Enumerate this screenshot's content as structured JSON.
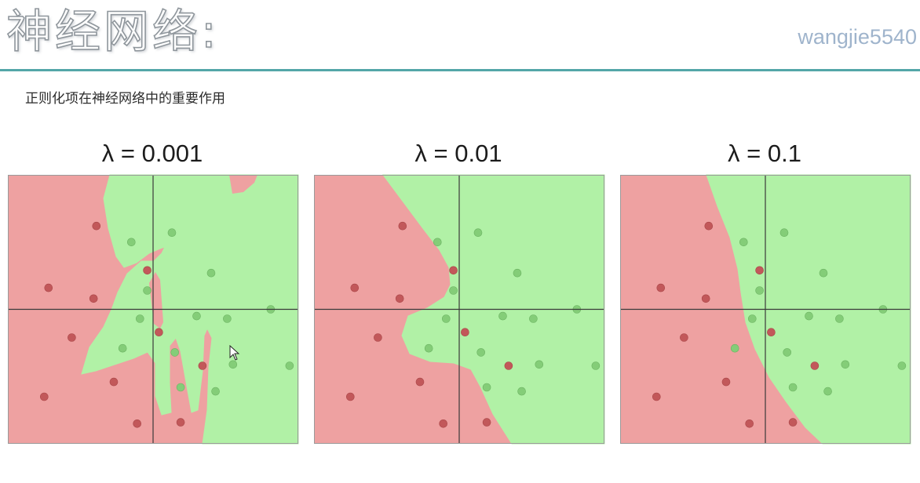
{
  "header": {
    "title": "神经网络:",
    "watermark": "wangjie5540",
    "subtitle": "正则化项在神经网络中的重要作用"
  },
  "colors": {
    "red_region": "#eea1a1",
    "green_region": "#b1f1a6",
    "red_point": "#c2585a",
    "green_point": "#84cd78",
    "axis": "#3a3a3a",
    "rule": "#53a6a8"
  },
  "chart_data": [
    {
      "type": "scatter",
      "title": "λ = 0.001",
      "xlim": [
        -1,
        1
      ],
      "ylim": [
        -1,
        1
      ],
      "grid": false,
      "points": [
        {
          "x": -0.39,
          "y": 0.62,
          "class": "red"
        },
        {
          "x": -0.04,
          "y": 0.29,
          "class": "red"
        },
        {
          "x": -0.72,
          "y": 0.16,
          "class": "red"
        },
        {
          "x": -0.41,
          "y": 0.08,
          "class": "red"
        },
        {
          "x": -0.56,
          "y": -0.21,
          "class": "red"
        },
        {
          "x": 0.04,
          "y": -0.17,
          "class": "red"
        },
        {
          "x": -0.27,
          "y": -0.54,
          "class": "red"
        },
        {
          "x": 0.34,
          "y": -0.42,
          "class": "red"
        },
        {
          "x": -0.75,
          "y": -0.65,
          "class": "red"
        },
        {
          "x": -0.11,
          "y": -0.85,
          "class": "red"
        },
        {
          "x": 0.19,
          "y": -0.84,
          "class": "red"
        },
        {
          "x": -0.15,
          "y": 0.5,
          "class": "green"
        },
        {
          "x": 0.13,
          "y": 0.57,
          "class": "green"
        },
        {
          "x": 0.4,
          "y": 0.27,
          "class": "green"
        },
        {
          "x": -0.04,
          "y": 0.14,
          "class": "green"
        },
        {
          "x": -0.09,
          "y": -0.07,
          "class": "green"
        },
        {
          "x": 0.3,
          "y": -0.05,
          "class": "green"
        },
        {
          "x": 0.51,
          "y": -0.07,
          "class": "green"
        },
        {
          "x": 0.81,
          "y": 0.0,
          "class": "green"
        },
        {
          "x": -0.21,
          "y": -0.29,
          "class": "green"
        },
        {
          "x": 0.15,
          "y": -0.32,
          "class": "green"
        },
        {
          "x": 0.55,
          "y": -0.41,
          "class": "green"
        },
        {
          "x": 0.94,
          "y": -0.42,
          "class": "green"
        },
        {
          "x": 0.19,
          "y": -0.58,
          "class": "green"
        },
        {
          "x": 0.43,
          "y": -0.61,
          "class": "green"
        }
      ]
    },
    {
      "type": "scatter",
      "title": "λ = 0.01",
      "xlim": [
        -1,
        1
      ],
      "ylim": [
        -1,
        1
      ],
      "grid": false,
      "points": [
        {
          "x": -0.39,
          "y": 0.62,
          "class": "red"
        },
        {
          "x": -0.04,
          "y": 0.29,
          "class": "red"
        },
        {
          "x": -0.72,
          "y": 0.16,
          "class": "red"
        },
        {
          "x": -0.41,
          "y": 0.08,
          "class": "red"
        },
        {
          "x": -0.56,
          "y": -0.21,
          "class": "red"
        },
        {
          "x": 0.04,
          "y": -0.17,
          "class": "red"
        },
        {
          "x": -0.27,
          "y": -0.54,
          "class": "red"
        },
        {
          "x": 0.34,
          "y": -0.42,
          "class": "red"
        },
        {
          "x": -0.75,
          "y": -0.65,
          "class": "red"
        },
        {
          "x": -0.11,
          "y": -0.85,
          "class": "red"
        },
        {
          "x": 0.19,
          "y": -0.84,
          "class": "red"
        },
        {
          "x": -0.15,
          "y": 0.5,
          "class": "green"
        },
        {
          "x": 0.13,
          "y": 0.57,
          "class": "green"
        },
        {
          "x": 0.4,
          "y": 0.27,
          "class": "green"
        },
        {
          "x": -0.04,
          "y": 0.14,
          "class": "green"
        },
        {
          "x": -0.09,
          "y": -0.07,
          "class": "green"
        },
        {
          "x": 0.3,
          "y": -0.05,
          "class": "green"
        },
        {
          "x": 0.51,
          "y": -0.07,
          "class": "green"
        },
        {
          "x": 0.81,
          "y": 0.0,
          "class": "green"
        },
        {
          "x": -0.21,
          "y": -0.29,
          "class": "green"
        },
        {
          "x": 0.15,
          "y": -0.32,
          "class": "green"
        },
        {
          "x": 0.55,
          "y": -0.41,
          "class": "green"
        },
        {
          "x": 0.94,
          "y": -0.42,
          "class": "green"
        },
        {
          "x": 0.19,
          "y": -0.58,
          "class": "green"
        },
        {
          "x": 0.43,
          "y": -0.61,
          "class": "green"
        }
      ]
    },
    {
      "type": "scatter",
      "title": "λ = 0.1",
      "xlim": [
        -1,
        1
      ],
      "ylim": [
        -1,
        1
      ],
      "grid": false,
      "points": [
        {
          "x": -0.39,
          "y": 0.62,
          "class": "red"
        },
        {
          "x": -0.04,
          "y": 0.29,
          "class": "red"
        },
        {
          "x": -0.72,
          "y": 0.16,
          "class": "red"
        },
        {
          "x": -0.41,
          "y": 0.08,
          "class": "red"
        },
        {
          "x": -0.56,
          "y": -0.21,
          "class": "red"
        },
        {
          "x": 0.04,
          "y": -0.17,
          "class": "red"
        },
        {
          "x": -0.27,
          "y": -0.54,
          "class": "red"
        },
        {
          "x": 0.34,
          "y": -0.42,
          "class": "red"
        },
        {
          "x": -0.75,
          "y": -0.65,
          "class": "red"
        },
        {
          "x": -0.11,
          "y": -0.85,
          "class": "red"
        },
        {
          "x": 0.19,
          "y": -0.84,
          "class": "red"
        },
        {
          "x": -0.15,
          "y": 0.5,
          "class": "green"
        },
        {
          "x": 0.13,
          "y": 0.57,
          "class": "green"
        },
        {
          "x": 0.4,
          "y": 0.27,
          "class": "green"
        },
        {
          "x": -0.04,
          "y": 0.14,
          "class": "green"
        },
        {
          "x": -0.09,
          "y": -0.07,
          "class": "green"
        },
        {
          "x": 0.3,
          "y": -0.05,
          "class": "green"
        },
        {
          "x": 0.51,
          "y": -0.07,
          "class": "green"
        },
        {
          "x": 0.81,
          "y": 0.0,
          "class": "green"
        },
        {
          "x": -0.21,
          "y": -0.29,
          "class": "green"
        },
        {
          "x": 0.15,
          "y": -0.32,
          "class": "green"
        },
        {
          "x": 0.55,
          "y": -0.41,
          "class": "green"
        },
        {
          "x": 0.94,
          "y": -0.42,
          "class": "green"
        },
        {
          "x": 0.19,
          "y": -0.58,
          "class": "green"
        },
        {
          "x": 0.43,
          "y": -0.61,
          "class": "green"
        }
      ]
    }
  ]
}
